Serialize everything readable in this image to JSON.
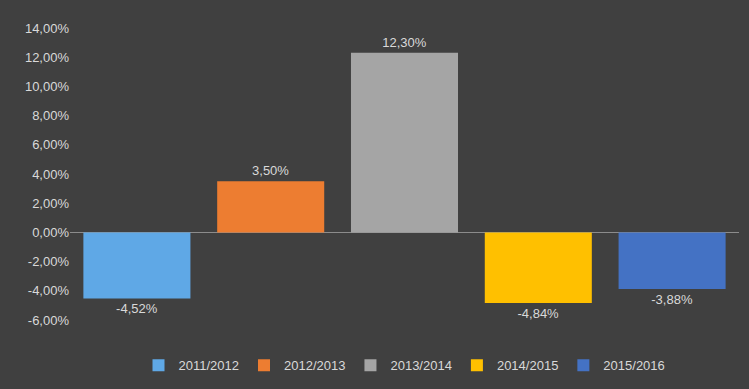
{
  "chart_data": {
    "type": "bar",
    "categories": [
      "2011/2012",
      "2012/2013",
      "2013/2014",
      "2014/2015",
      "2015/2016"
    ],
    "values": [
      -4.52,
      3.5,
      12.3,
      -4.84,
      -3.88
    ],
    "value_labels": [
      "-4,52%",
      "3,50%",
      "12,30%",
      "-4,84%",
      "-3,88%"
    ],
    "colors": [
      "#5fa8e6",
      "#ed7d31",
      "#a5a5a5",
      "#ffc000",
      "#4472c4"
    ],
    "ylim": [
      -6,
      14
    ],
    "yticks": [
      {
        "value": -6,
        "label": "-6,00%"
      },
      {
        "value": -4,
        "label": "-4,00%"
      },
      {
        "value": -2,
        "label": "-2,00%"
      },
      {
        "value": 0,
        "label": "0,00%"
      },
      {
        "value": 2,
        "label": "2,00%"
      },
      {
        "value": 4,
        "label": "4,00%"
      },
      {
        "value": 6,
        "label": "6,00%"
      },
      {
        "value": 8,
        "label": "8,00%"
      },
      {
        "value": 10,
        "label": "10,00%"
      },
      {
        "value": 12,
        "label": "12,00%"
      },
      {
        "value": 14,
        "label": "14,00%"
      }
    ],
    "grid": false,
    "data_labels": true,
    "legend": "bottom",
    "tick_labels": "y"
  }
}
